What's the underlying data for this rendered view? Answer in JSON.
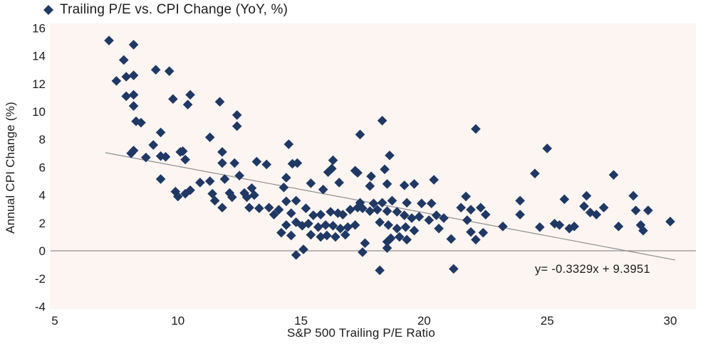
{
  "colors": {
    "marker": "#1f3864",
    "plot_bg": "#fcf5f2",
    "trend_line": "#8f8f8f",
    "zero_line": "#8f8f8f",
    "text": "#1c1c1c",
    "page_bg": "#ffffff"
  },
  "chart_data": {
    "type": "scatter",
    "legend_label": "Trailing P/E vs. CPI Change (YoY, %)",
    "xlabel": "S&P 500 Trailing P/E Ratio",
    "ylabel": "Annual CPI Change (%)",
    "xlim": [
      5,
      31
    ],
    "ylim": [
      -4.1,
      16.3
    ],
    "xticks": [
      5,
      10,
      15,
      20,
      25,
      30
    ],
    "yticks": [
      16,
      14,
      12,
      10,
      8,
      6,
      4,
      2,
      0,
      -2,
      -4
    ],
    "grid": false,
    "legend_position": "top-left",
    "marker": "diamond",
    "trendline": {
      "slope": -0.3329,
      "intercept": 9.3951,
      "label": "y= -0.3329x + 9.3951",
      "x_range": [
        7.05,
        30.2
      ]
    },
    "points": [
      [
        7.2,
        15.1
      ],
      [
        8.2,
        14.8
      ],
      [
        7.8,
        13.7
      ],
      [
        9.1,
        13.0
      ],
      [
        9.65,
        12.9
      ],
      [
        7.5,
        12.2
      ],
      [
        7.9,
        12.5
      ],
      [
        8.2,
        12.6
      ],
      [
        7.9,
        11.1
      ],
      [
        8.2,
        11.2
      ],
      [
        8.2,
        10.4
      ],
      [
        9.8,
        10.9
      ],
      [
        10.5,
        11.2
      ],
      [
        10.4,
        10.5
      ],
      [
        11.7,
        10.7
      ],
      [
        12.4,
        9.75
      ],
      [
        12.4,
        8.95
      ],
      [
        8.3,
        9.3
      ],
      [
        8.5,
        9.2
      ],
      [
        9.3,
        8.5
      ],
      [
        11.3,
        8.15
      ],
      [
        9.0,
        7.6
      ],
      [
        8.2,
        7.2
      ],
      [
        10.1,
        7.1
      ],
      [
        11.8,
        7.1
      ],
      [
        8.1,
        7.0
      ],
      [
        8.7,
        6.7
      ],
      [
        9.3,
        6.8
      ],
      [
        9.5,
        6.75
      ],
      [
        10.2,
        7.15
      ],
      [
        10.3,
        6.55
      ],
      [
        11.8,
        6.3
      ],
      [
        12.3,
        6.3
      ],
      [
        13.2,
        6.4
      ],
      [
        13.6,
        6.2
      ],
      [
        9.3,
        5.15
      ],
      [
        9.9,
        4.25
      ],
      [
        10.0,
        3.9
      ],
      [
        10.3,
        4.1
      ],
      [
        10.5,
        4.35
      ],
      [
        10.9,
        4.9
      ],
      [
        11.3,
        5.0
      ],
      [
        11.4,
        4.1
      ],
      [
        11.5,
        3.6
      ],
      [
        11.8,
        3.1
      ],
      [
        11.9,
        5.15
      ],
      [
        12.1,
        4.15
      ],
      [
        12.2,
        3.85
      ],
      [
        12.5,
        5.4
      ],
      [
        12.7,
        4.15
      ],
      [
        12.8,
        3.85
      ],
      [
        12.9,
        3.1
      ],
      [
        13.0,
        4.5
      ],
      [
        13.1,
        4.0
      ],
      [
        13.3,
        3.05
      ],
      [
        13.7,
        3.1
      ],
      [
        13.9,
        2.6
      ],
      [
        14.5,
        7.65
      ],
      [
        17.4,
        8.35
      ],
      [
        18.3,
        9.35
      ],
      [
        14.65,
        6.25
      ],
      [
        14.85,
        6.3
      ],
      [
        16.3,
        6.5
      ],
      [
        18.6,
        6.85
      ],
      [
        16.25,
        5.9
      ],
      [
        16.1,
        5.65
      ],
      [
        17.2,
        5.75
      ],
      [
        18.4,
        5.85
      ],
      [
        14.4,
        5.25
      ],
      [
        15.4,
        4.85
      ],
      [
        16.55,
        4.9
      ],
      [
        17.3,
        5.6
      ],
      [
        17.85,
        5.35
      ],
      [
        18.5,
        4.8
      ],
      [
        19.2,
        4.7
      ],
      [
        19.6,
        4.8
      ],
      [
        20.4,
        5.1
      ],
      [
        14.3,
        4.55
      ],
      [
        15.9,
        4.4
      ],
      [
        17.8,
        4.65
      ],
      [
        14.4,
        3.55
      ],
      [
        14.8,
        3.6
      ],
      [
        17.4,
        3.45
      ],
      [
        17.95,
        3.4
      ],
      [
        18.3,
        3.45
      ],
      [
        14.1,
        2.95
      ],
      [
        14.6,
        2.7
      ],
      [
        15.2,
        3.05
      ],
      [
        15.5,
        2.55
      ],
      [
        15.8,
        2.6
      ],
      [
        16.2,
        2.8
      ],
      [
        16.5,
        2.7
      ],
      [
        16.7,
        2.6
      ],
      [
        17.0,
        2.95
      ],
      [
        17.3,
        3.1
      ],
      [
        17.5,
        3.05
      ],
      [
        17.8,
        2.85
      ],
      [
        18.1,
        2.95
      ],
      [
        14.4,
        1.85
      ],
      [
        14.8,
        2.05
      ],
      [
        15.05,
        1.8
      ],
      [
        15.3,
        1.95
      ],
      [
        15.7,
        1.7
      ],
      [
        16.0,
        1.85
      ],
      [
        16.3,
        1.8
      ],
      [
        16.6,
        1.6
      ],
      [
        16.9,
        1.7
      ],
      [
        17.2,
        1.85
      ],
      [
        18.2,
        2.05
      ],
      [
        14.2,
        1.3
      ],
      [
        14.6,
        1.1
      ],
      [
        15.4,
        1.15
      ],
      [
        15.8,
        1.0
      ],
      [
        16.05,
        1.1
      ],
      [
        16.4,
        1.0
      ],
      [
        16.8,
        1.15
      ],
      [
        15.1,
        0.1
      ],
      [
        14.8,
        -0.3
      ],
      [
        17.5,
        -0.1
      ],
      [
        18.2,
        -1.4
      ],
      [
        17.6,
        0.55
      ],
      [
        18.5,
        0.65
      ],
      [
        21.7,
        3.9
      ],
      [
        18.7,
        3.6
      ],
      [
        19.3,
        3.45
      ],
      [
        19.9,
        3.4
      ],
      [
        20.3,
        3.4
      ],
      [
        21.5,
        3.1
      ],
      [
        21.9,
        2.95
      ],
      [
        22.3,
        3.1
      ],
      [
        18.5,
        2.85
      ],
      [
        18.9,
        2.8
      ],
      [
        19.2,
        2.55
      ],
      [
        19.5,
        2.35
      ],
      [
        19.8,
        2.45
      ],
      [
        20.2,
        2.2
      ],
      [
        20.5,
        2.55
      ],
      [
        20.8,
        2.35
      ],
      [
        21.75,
        2.2
      ],
      [
        22.5,
        2.6
      ],
      [
        18.55,
        1.85
      ],
      [
        18.9,
        1.6
      ],
      [
        19.25,
        1.7
      ],
      [
        19.6,
        1.45
      ],
      [
        20.6,
        1.6
      ],
      [
        21.9,
        1.35
      ],
      [
        22.4,
        1.3
      ],
      [
        18.65,
        0.9
      ],
      [
        19.0,
        1.0
      ],
      [
        19.3,
        0.8
      ],
      [
        18.5,
        0.2
      ],
      [
        21.1,
        0.85
      ],
      [
        22.1,
        0.8
      ],
      [
        21.2,
        -1.3
      ],
      [
        22.1,
        8.75
      ],
      [
        25.0,
        7.35
      ],
      [
        24.5,
        5.55
      ],
      [
        27.7,
        5.45
      ],
      [
        23.9,
        3.6
      ],
      [
        23.9,
        2.6
      ],
      [
        25.7,
        3.7
      ],
      [
        26.6,
        3.95
      ],
      [
        26.5,
        3.2
      ],
      [
        26.75,
        2.75
      ],
      [
        27.0,
        2.6
      ],
      [
        27.3,
        3.1
      ],
      [
        28.5,
        3.95
      ],
      [
        28.6,
        2.9
      ],
      [
        29.1,
        2.9
      ],
      [
        30.0,
        2.1
      ],
      [
        23.2,
        1.75
      ],
      [
        24.7,
        1.7
      ],
      [
        25.3,
        1.95
      ],
      [
        25.5,
        1.85
      ],
      [
        25.9,
        1.6
      ],
      [
        26.1,
        1.75
      ],
      [
        27.9,
        1.75
      ],
      [
        28.8,
        1.85
      ],
      [
        28.9,
        1.45
      ]
    ]
  }
}
